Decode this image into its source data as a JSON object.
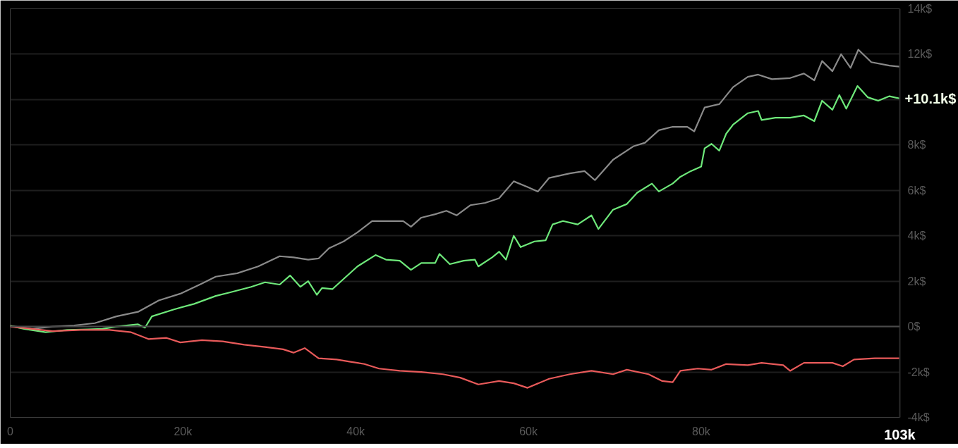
{
  "chart_data": {
    "type": "line",
    "xlim": [
      0,
      103000
    ],
    "xticks": [
      0,
      {
        "value": 20000,
        "label": "20k"
      },
      {
        "value": 40000,
        "label": "40k"
      },
      {
        "value": 60000,
        "label": "60k"
      },
      {
        "value": 80000,
        "label": "80k"
      },
      {
        "value": 103000,
        "label": "103k"
      }
    ],
    "ylim": [
      -4000,
      14000
    ],
    "yticks": [
      {
        "value": -4000,
        "label": "-4k$"
      },
      {
        "value": -2000,
        "label": "-2k$"
      },
      {
        "value": 0,
        "label": "0$"
      },
      {
        "value": 2000,
        "label": "2k$"
      },
      {
        "value": 4000,
        "label": "4k$"
      },
      {
        "value": 6000,
        "label": "6k$"
      },
      {
        "value": 8000,
        "label": "8k$"
      },
      {
        "value": 10000,
        "label": null
      },
      {
        "value": 12000,
        "label": "12k$"
      },
      {
        "value": 14000,
        "label": "14k$"
      }
    ],
    "grid": "y",
    "line_style": "solid",
    "ref_lines": [
      {
        "axis": "y",
        "value": 0,
        "color": "#4a4a4a"
      }
    ],
    "annotations": [
      {
        "text": "+10.1k$",
        "x": 103000,
        "y": 10050
      }
    ],
    "series": [
      {
        "color": "#8a8a8a",
        "x": [
          0,
          2500,
          4900,
          7400,
          9800,
          12300,
          14800,
          17200,
          19700,
          22200,
          23800,
          26300,
          28700,
          31200,
          32800,
          34500,
          35700,
          36900,
          38600,
          40200,
          41900,
          43900,
          45500,
          46400,
          47600,
          49200,
          50500,
          51700,
          53300,
          55000,
          56600,
          58300,
          59900,
          61100,
          62400,
          64800,
          66500,
          67700,
          69800,
          72200,
          73500,
          75100,
          76700,
          78400,
          79200,
          80400,
          82100,
          83700,
          85400,
          86600,
          88200,
          90300,
          91900,
          93100,
          94000,
          95200,
          96200,
          97300,
          98200,
          99700,
          101800,
          103000
        ],
        "values": [
          30,
          -100,
          0,
          50,
          150,
          450,
          650,
          1150,
          1450,
          1900,
          2200,
          2350,
          2650,
          3100,
          3050,
          2950,
          3000,
          3450,
          3750,
          4150,
          4650,
          4650,
          4650,
          4400,
          4800,
          4950,
          5100,
          4900,
          5350,
          5450,
          5650,
          6400,
          6150,
          5950,
          6550,
          6750,
          6850,
          6450,
          7350,
          7950,
          8100,
          8650,
          8800,
          8800,
          8600,
          9650,
          9800,
          10550,
          11000,
          11100,
          10900,
          10950,
          11150,
          10850,
          11700,
          11250,
          12000,
          11400,
          12200,
          11650,
          11500,
          11450
        ]
      },
      {
        "color": "#6ee87a",
        "x": [
          0,
          1600,
          4100,
          6600,
          9000,
          10700,
          12300,
          14800,
          15600,
          16400,
          18900,
          21300,
          23800,
          25400,
          27900,
          29500,
          31200,
          32400,
          33600,
          34500,
          35500,
          36100,
          37300,
          38600,
          40200,
          42300,
          43500,
          45100,
          46400,
          47600,
          49200,
          49700,
          50900,
          52500,
          53800,
          54200,
          55800,
          56600,
          57400,
          58300,
          59100,
          60700,
          62000,
          62800,
          64000,
          65700,
          67300,
          68100,
          69800,
          71400,
          72600,
          74300,
          75100,
          76700,
          77600,
          78800,
          80000,
          80400,
          81200,
          82100,
          82900,
          83700,
          85400,
          86600,
          87000,
          88600,
          90300,
          91900,
          93100,
          94000,
          95200,
          96000,
          96800,
          98100,
          99300,
          100500,
          101800,
          103000
        ],
        "values": [
          30,
          -100,
          -250,
          -150,
          -120,
          -100,
          0,
          100,
          -50,
          450,
          750,
          1000,
          1350,
          1500,
          1750,
          1950,
          1850,
          2250,
          1750,
          2000,
          1400,
          1700,
          1650,
          2100,
          2650,
          3150,
          2950,
          2900,
          2500,
          2800,
          2800,
          3200,
          2750,
          2900,
          2950,
          2650,
          3050,
          3300,
          2950,
          4000,
          3500,
          3750,
          3800,
          4500,
          4650,
          4500,
          4900,
          4300,
          5150,
          5400,
          5900,
          6300,
          5950,
          6300,
          6600,
          6850,
          7050,
          7850,
          8050,
          7750,
          8500,
          8900,
          9400,
          9500,
          9100,
          9200,
          9200,
          9300,
          9050,
          9950,
          9550,
          10200,
          9600,
          10600,
          10100,
          9950,
          10150,
          10050
        ]
      },
      {
        "color": "#e85a5a",
        "x": [
          0,
          2500,
          4900,
          8200,
          11500,
          14000,
          16000,
          18100,
          19700,
          22200,
          24600,
          27100,
          29500,
          31600,
          32800,
          34100,
          35700,
          37800,
          39400,
          41000,
          42700,
          45100,
          47600,
          50100,
          52100,
          54200,
          56600,
          58300,
          59900,
          62400,
          64800,
          67300,
          69800,
          71400,
          73900,
          75500,
          76700,
          77600,
          79600,
          81200,
          82900,
          85400,
          87000,
          89500,
          90300,
          91900,
          95200,
          96400,
          97700,
          100100,
          103000
        ],
        "values": [
          0,
          -100,
          -200,
          -150,
          -150,
          -250,
          -550,
          -500,
          -700,
          -600,
          -650,
          -800,
          -900,
          -1000,
          -1150,
          -950,
          -1400,
          -1450,
          -1550,
          -1650,
          -1850,
          -1950,
          -2000,
          -2100,
          -2250,
          -2550,
          -2400,
          -2500,
          -2700,
          -2300,
          -2100,
          -1950,
          -2100,
          -1900,
          -2100,
          -2400,
          -2450,
          -1950,
          -1850,
          -1900,
          -1650,
          -1700,
          -1600,
          -1700,
          -1950,
          -1600,
          -1600,
          -1750,
          -1450,
          -1400,
          -1400
        ]
      }
    ]
  }
}
